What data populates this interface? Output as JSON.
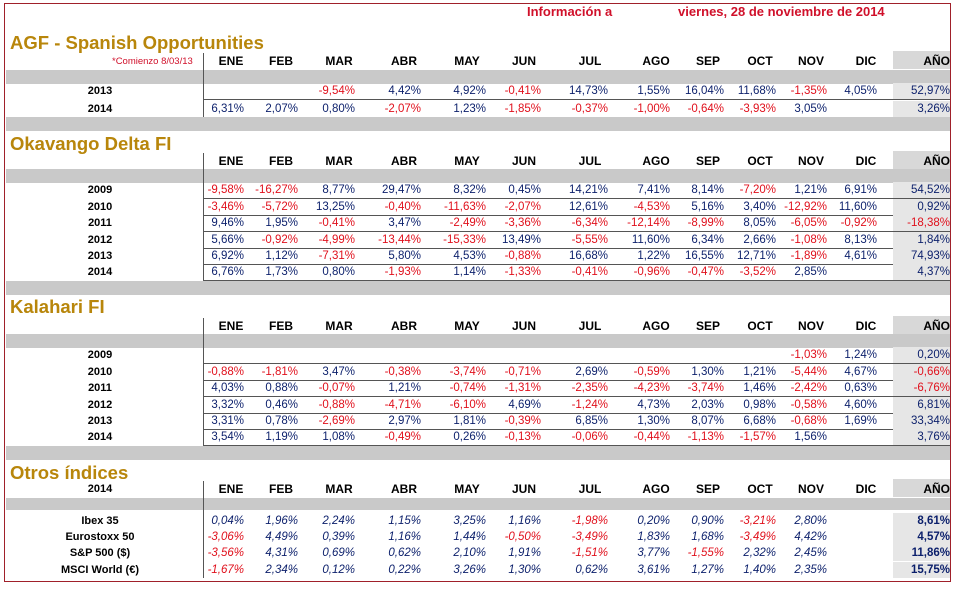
{
  "header": {
    "info_label": "Información a",
    "date": "viernes, 28 de noviembre de 2014"
  },
  "months": [
    "ENE",
    "FEB",
    "MAR",
    "ABR",
    "MAY",
    "JUN",
    "JUL",
    "AGO",
    "SEP",
    "OCT",
    "NOV",
    "DIC"
  ],
  "year_col": "AÑO",
  "sections": [
    {
      "title": "AGF - Spanish Opportunities",
      "note": "*Comienzo 8/03/13",
      "header_label": "",
      "rows": [
        {
          "label": "2013",
          "values": [
            "",
            "",
            "-9,54%",
            "4,42%",
            "4,92%",
            "-0,41%",
            "14,73%",
            "1,55%",
            "16,04%",
            "11,68%",
            "-1,35%",
            "4,05%"
          ],
          "year": "52,97%"
        },
        {
          "label": "2014",
          "values": [
            "6,31%",
            "2,07%",
            "0,80%",
            "-2,07%",
            "1,23%",
            "-1,85%",
            "-0,37%",
            "-1,00%",
            "-0,64%",
            "-3,93%",
            "3,05%",
            ""
          ],
          "year": "3,26%"
        }
      ]
    },
    {
      "title": "Okavango Delta FI",
      "note": "",
      "header_label": "",
      "rows": [
        {
          "label": "2009",
          "values": [
            "-9,58%",
            "-16,27%",
            "8,77%",
            "29,47%",
            "8,32%",
            "0,45%",
            "14,21%",
            "7,41%",
            "8,14%",
            "-7,20%",
            "1,21%",
            "6,91%"
          ],
          "year": "54,52%"
        },
        {
          "label": "2010",
          "values": [
            "-3,46%",
            "-5,72%",
            "13,25%",
            "-0,40%",
            "-11,63%",
            "-2,07%",
            "12,61%",
            "-4,53%",
            "5,16%",
            "3,40%",
            "-12,92%",
            "11,60%"
          ],
          "year": "0,92%"
        },
        {
          "label": "2011",
          "values": [
            "9,46%",
            "1,95%",
            "-0,41%",
            "3,47%",
            "-2,49%",
            "-3,36%",
            "-6,34%",
            "-12,14%",
            "-8,99%",
            "8,05%",
            "-6,05%",
            "-0,92%"
          ],
          "year": "-18,38%"
        },
        {
          "label": "2012",
          "values": [
            "5,66%",
            "-0,92%",
            "-4,99%",
            "-13,44%",
            "-15,33%",
            "13,49%",
            "-5,55%",
            "11,60%",
            "6,34%",
            "2,66%",
            "-1,08%",
            "8,13%"
          ],
          "year": "1,84%"
        },
        {
          "label": "2013",
          "values": [
            "6,92%",
            "1,12%",
            "-7,31%",
            "5,80%",
            "4,53%",
            "-0,88%",
            "16,68%",
            "1,22%",
            "16,55%",
            "12,71%",
            "-1,89%",
            "4,61%"
          ],
          "year": "74,93%"
        },
        {
          "label": "2014",
          "values": [
            "6,76%",
            "1,73%",
            "0,80%",
            "-1,93%",
            "1,14%",
            "-1,33%",
            "-0,41%",
            "-0,96%",
            "-0,47%",
            "-3,52%",
            "2,85%",
            ""
          ],
          "year": "4,37%"
        }
      ]
    },
    {
      "title": "Kalahari FI",
      "note": "",
      "header_label": "",
      "rows": [
        {
          "label": "2009",
          "values": [
            "",
            "",
            "",
            "",
            "",
            "",
            "",
            "",
            "",
            "",
            "-1,03%",
            "1,24%"
          ],
          "year": "0,20%"
        },
        {
          "label": "2010",
          "values": [
            "-0,88%",
            "-1,81%",
            "3,47%",
            "-0,38%",
            "-3,74%",
            "-0,71%",
            "2,69%",
            "-0,59%",
            "1,30%",
            "1,21%",
            "-5,44%",
            "4,67%"
          ],
          "year": "-0,66%"
        },
        {
          "label": "2011",
          "values": [
            "4,03%",
            "0,88%",
            "-0,07%",
            "1,21%",
            "-0,74%",
            "-1,31%",
            "-2,35%",
            "-4,23%",
            "-3,74%",
            "1,46%",
            "-2,42%",
            "0,63%"
          ],
          "year": "-6,76%"
        },
        {
          "label": "2012",
          "values": [
            "3,32%",
            "0,46%",
            "-0,88%",
            "-4,71%",
            "-6,10%",
            "4,69%",
            "-1,24%",
            "4,73%",
            "2,03%",
            "0,98%",
            "-0,58%",
            "4,60%"
          ],
          "year": "6,81%"
        },
        {
          "label": "2013",
          "values": [
            "3,31%",
            "0,78%",
            "-2,69%",
            "2,97%",
            "1,81%",
            "-0,39%",
            "6,85%",
            "1,30%",
            "8,07%",
            "6,68%",
            "-0,68%",
            "1,69%"
          ],
          "year": "33,34%"
        },
        {
          "label": "2014",
          "values": [
            "3,54%",
            "1,19%",
            "1,08%",
            "-0,49%",
            "0,26%",
            "-0,13%",
            "-0,06%",
            "-0,44%",
            "-1,13%",
            "-1,57%",
            "1,56%",
            ""
          ],
          "year": "3,76%"
        }
      ]
    },
    {
      "title": "Otros índices",
      "note": "",
      "header_label": "2014",
      "rows": [
        {
          "label": "Ibex 35",
          "values": [
            "0,04%",
            "1,96%",
            "2,24%",
            "1,15%",
            "3,25%",
            "1,16%",
            "-1,98%",
            "0,20%",
            "0,90%",
            "-3,21%",
            "2,80%",
            ""
          ],
          "year": "8,61%"
        },
        {
          "label": "Eurostoxx 50",
          "values": [
            "-3,06%",
            "4,49%",
            "0,39%",
            "1,16%",
            "1,44%",
            "-0,50%",
            "-3,49%",
            "1,83%",
            "1,68%",
            "-3,49%",
            "4,42%",
            ""
          ],
          "year": "4,57%"
        },
        {
          "label": "S&P 500 ($)",
          "values": [
            "-3,56%",
            "4,31%",
            "0,69%",
            "0,62%",
            "2,10%",
            "1,91%",
            "-1,51%",
            "3,77%",
            "-1,55%",
            "2,32%",
            "2,45%",
            ""
          ],
          "year": "11,86%"
        },
        {
          "label": "MSCI World (€)",
          "values": [
            "-1,67%",
            "2,34%",
            "0,12%",
            "0,22%",
            "3,26%",
            "1,30%",
            "0,62%",
            "3,61%",
            "1,27%",
            "1,40%",
            "2,35%",
            ""
          ],
          "year": "15,75%"
        }
      ]
    }
  ]
}
